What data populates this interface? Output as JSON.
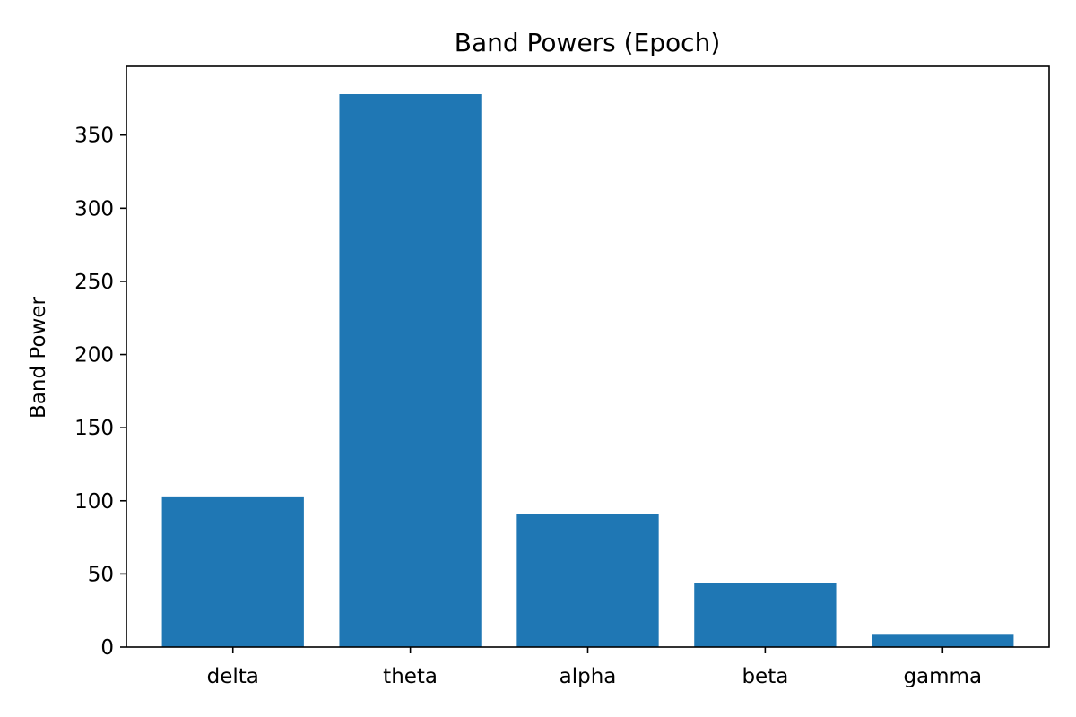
{
  "chart_data": {
    "type": "bar",
    "title": "Band Powers (Epoch)",
    "xlabel": "",
    "ylabel": "Band Power",
    "categories": [
      "delta",
      "theta",
      "alpha",
      "beta",
      "gamma"
    ],
    "values": [
      103,
      378,
      91,
      44,
      9
    ],
    "ylim": [
      0,
      397
    ],
    "yticks": [
      0,
      50,
      100,
      150,
      200,
      250,
      300,
      350
    ],
    "grid": false,
    "legend": "none",
    "bar_color": "#1f77b4"
  }
}
